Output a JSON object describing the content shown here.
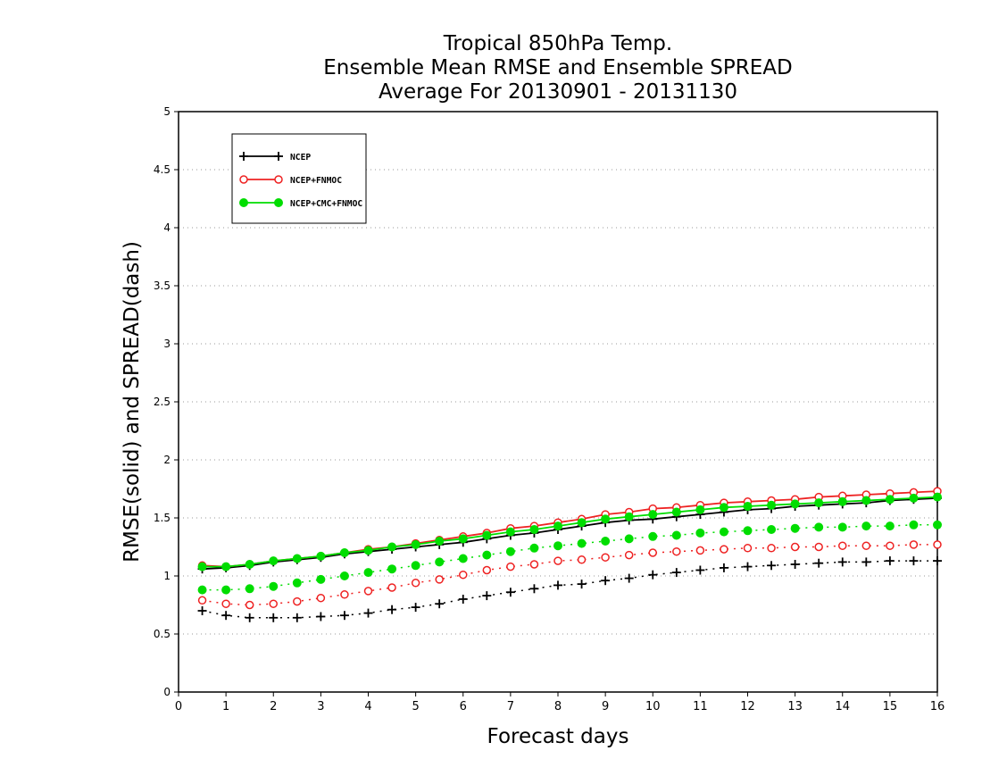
{
  "chart_data": {
    "type": "line",
    "title_lines": [
      "Tropical 850hPa Temp.",
      "Ensemble Mean RMSE and Ensemble SPREAD",
      "Average For 20130901 - 20131130"
    ],
    "xlabel": "Forecast days",
    "ylabel": "RMSE(solid) and SPREAD(dash)",
    "xlim": [
      0,
      16
    ],
    "ylim": [
      0,
      5
    ],
    "x_ticks": [
      "0",
      "1",
      "2",
      "3",
      "4",
      "5",
      "6",
      "7",
      "8",
      "9",
      "10",
      "11",
      "12",
      "13",
      "14",
      "15",
      "16"
    ],
    "y_ticks": [
      "0",
      "0.5",
      "1",
      "1.5",
      "2",
      "2.5",
      "3",
      "3.5",
      "4",
      "4.5",
      "5"
    ],
    "grid": "horizontal dotted",
    "legend_position": "top-left",
    "x": [
      0.5,
      1,
      1.5,
      2,
      2.5,
      3,
      3.5,
      4,
      4.5,
      5,
      5.5,
      6,
      6.5,
      7,
      7.5,
      8,
      8.5,
      9,
      9.5,
      10,
      10.5,
      11,
      11.5,
      12,
      12.5,
      13,
      13.5,
      14,
      14.5,
      15,
      15.5,
      16
    ],
    "series": [
      {
        "name": "NCEP",
        "color": "#000000",
        "marker": "plus",
        "rmse": [
          1.06,
          1.07,
          1.09,
          1.12,
          1.14,
          1.16,
          1.19,
          1.21,
          1.23,
          1.25,
          1.27,
          1.29,
          1.32,
          1.35,
          1.37,
          1.4,
          1.43,
          1.46,
          1.48,
          1.49,
          1.51,
          1.53,
          1.55,
          1.57,
          1.58,
          1.6,
          1.61,
          1.62,
          1.63,
          1.65,
          1.66,
          1.67
        ],
        "spread": [
          0.7,
          0.66,
          0.64,
          0.64,
          0.64,
          0.65,
          0.66,
          0.68,
          0.71,
          0.73,
          0.76,
          0.8,
          0.83,
          0.86,
          0.89,
          0.92,
          0.93,
          0.96,
          0.98,
          1.01,
          1.03,
          1.05,
          1.07,
          1.08,
          1.09,
          1.1,
          1.11,
          1.12,
          1.12,
          1.13,
          1.13,
          1.13
        ]
      },
      {
        "name": "NCEP+FNMOC",
        "color": "#ee2222",
        "marker": "open-circle",
        "rmse": [
          1.09,
          1.08,
          1.1,
          1.13,
          1.15,
          1.17,
          1.2,
          1.23,
          1.25,
          1.28,
          1.31,
          1.34,
          1.37,
          1.41,
          1.43,
          1.46,
          1.49,
          1.53,
          1.55,
          1.58,
          1.59,
          1.61,
          1.63,
          1.64,
          1.65,
          1.66,
          1.68,
          1.69,
          1.7,
          1.71,
          1.72,
          1.73
        ],
        "spread": [
          0.79,
          0.76,
          0.75,
          0.76,
          0.78,
          0.81,
          0.84,
          0.87,
          0.9,
          0.94,
          0.97,
          1.01,
          1.05,
          1.08,
          1.1,
          1.13,
          1.14,
          1.16,
          1.18,
          1.2,
          1.21,
          1.22,
          1.23,
          1.24,
          1.24,
          1.25,
          1.25,
          1.26,
          1.26,
          1.26,
          1.27,
          1.27
        ]
      },
      {
        "name": "NCEP+CMC+FNMOC",
        "color": "#00dd00",
        "marker": "filled-circle",
        "rmse": [
          1.08,
          1.08,
          1.1,
          1.13,
          1.15,
          1.17,
          1.2,
          1.22,
          1.25,
          1.27,
          1.3,
          1.32,
          1.35,
          1.38,
          1.4,
          1.43,
          1.46,
          1.49,
          1.51,
          1.53,
          1.55,
          1.57,
          1.59,
          1.6,
          1.61,
          1.62,
          1.63,
          1.64,
          1.65,
          1.66,
          1.67,
          1.68
        ],
        "spread": [
          0.88,
          0.88,
          0.89,
          0.91,
          0.94,
          0.97,
          1.0,
          1.03,
          1.06,
          1.09,
          1.12,
          1.15,
          1.18,
          1.21,
          1.24,
          1.26,
          1.28,
          1.3,
          1.32,
          1.34,
          1.35,
          1.37,
          1.38,
          1.39,
          1.4,
          1.41,
          1.42,
          1.42,
          1.43,
          1.43,
          1.44,
          1.44
        ]
      }
    ]
  }
}
